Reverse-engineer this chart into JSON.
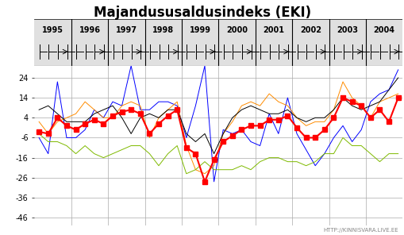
{
  "title": "Majandususaldusindeks (EKI)",
  "background_color": "#ffffff",
  "plot_bg_color": "#ffffff",
  "yticks": [
    -46,
    -36,
    -26,
    -16,
    -6,
    4,
    14,
    24
  ],
  "ylim": [
    -50,
    30
  ],
  "years": [
    1995,
    1996,
    1997,
    1998,
    1999,
    2000,
    2001,
    2002,
    2003,
    2004
  ],
  "watermark": "HTTP://KINNISVARA.LIVE.EE",
  "blue": [
    -6,
    -14,
    22,
    -6,
    -6,
    -2,
    8,
    4,
    12,
    10,
    30,
    8,
    8,
    12,
    12,
    10,
    -6,
    10,
    30,
    -28,
    -2,
    -4,
    -2,
    -8,
    -10,
    6,
    -4,
    14,
    -4,
    -12,
    -20,
    -14,
    -6,
    0,
    -8,
    -2,
    12,
    16,
    18,
    28
  ],
  "orange": [
    2,
    -4,
    2,
    4,
    6,
    12,
    8,
    4,
    4,
    10,
    12,
    10,
    -6,
    4,
    8,
    12,
    -10,
    -22,
    -24,
    -20,
    -4,
    2,
    10,
    12,
    10,
    16,
    12,
    10,
    4,
    0,
    2,
    2,
    8,
    22,
    14,
    10,
    4,
    12,
    14,
    16
  ],
  "green": [
    -4,
    -8,
    -8,
    -10,
    -14,
    -10,
    -14,
    -16,
    -14,
    -12,
    -10,
    -10,
    -14,
    -20,
    -14,
    -10,
    -24,
    -22,
    -18,
    -22,
    -22,
    -22,
    -20,
    -22,
    -18,
    -16,
    -16,
    -18,
    -18,
    -20,
    -18,
    -14,
    -14,
    -6,
    -10,
    -10,
    -14,
    -18,
    -14,
    -14
  ],
  "black": [
    8,
    10,
    6,
    2,
    2,
    2,
    6,
    8,
    10,
    4,
    -4,
    4,
    6,
    4,
    8,
    8,
    -4,
    -8,
    -4,
    -14,
    -4,
    4,
    8,
    10,
    8,
    6,
    6,
    8,
    4,
    2,
    4,
    4,
    8,
    14,
    10,
    8,
    10,
    12,
    18,
    24
  ],
  "red": [
    -3,
    -4,
    4,
    0,
    -2,
    1,
    3,
    1,
    5,
    7,
    8,
    6,
    -4,
    1,
    5,
    8,
    -11,
    -14,
    -28,
    -17,
    -8,
    -5,
    -2,
    0,
    0,
    3,
    3,
    5,
    -1,
    -6,
    -6,
    -2,
    4,
    14,
    12,
    10,
    4,
    8,
    2,
    14
  ]
}
